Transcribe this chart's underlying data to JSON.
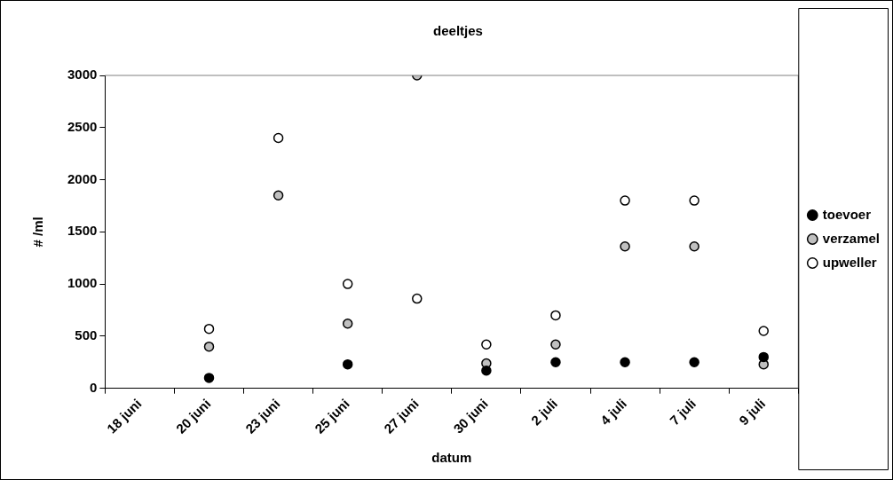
{
  "chart_data": {
    "type": "scatter",
    "title": "deeltjes",
    "xlabel": "datum",
    "ylabel": "# /ml",
    "categories": [
      "18 juni",
      "20 juni",
      "23 juni",
      "25 juni",
      "27 juni",
      "30 juni",
      "2 juli",
      "4 juli",
      "7 juli",
      "9 juli"
    ],
    "series": [
      {
        "name": "toevoer",
        "color": "#000000",
        "values": [
          null,
          100,
          null,
          230,
          null,
          170,
          250,
          250,
          250,
          300
        ]
      },
      {
        "name": "verzamel",
        "color": "#c0c0c0",
        "values": [
          null,
          400,
          1850,
          620,
          3000,
          240,
          420,
          1360,
          1360,
          230
        ]
      },
      {
        "name": "upweller",
        "color": "#ffffff",
        "values": [
          null,
          570,
          2400,
          1000,
          860,
          420,
          700,
          1800,
          1800,
          550
        ]
      }
    ],
    "ylim": [
      0,
      3000
    ],
    "yticks": [
      0,
      500,
      1000,
      1500,
      2000,
      2500,
      3000
    ],
    "grid": false,
    "legend": "right",
    "marker": "circle"
  }
}
